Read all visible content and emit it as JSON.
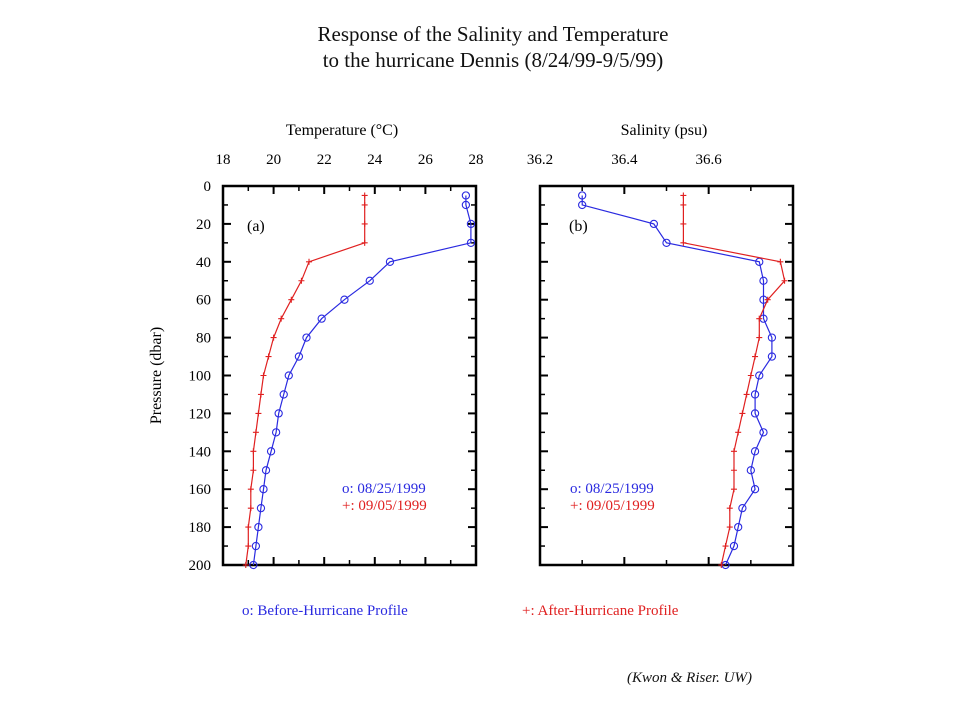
{
  "figure": {
    "title_line1": "Response of the Salinity and Temperature",
    "title_line2": "to the hurricane Dennis (8/24/99-9/5/99)",
    "legend_before": "o: Before-Hurricane Profile",
    "legend_after": "+: After-Hurricane Profile",
    "credit": "(Kwon & Riser. UW)",
    "colors": {
      "before": "#2a2ae0",
      "after": "#e02020",
      "axis": "#000000"
    }
  },
  "chart_data": [
    {
      "type": "line",
      "panel_label": "(a)",
      "xlabel": "Temperature (°C)",
      "ylabel": "Pressure (dbar)",
      "xlim": [
        18,
        28
      ],
      "ylim": [
        200,
        0
      ],
      "y_inverted": true,
      "xticks": [
        "18",
        "20",
        "22",
        "24",
        "26",
        "28"
      ],
      "yticks": [
        "0",
        "20",
        "40",
        "60",
        "80",
        "100",
        "120",
        "140",
        "160",
        "180",
        "200"
      ],
      "grid": false,
      "legend": {
        "placement": "lower-right",
        "entries": [
          "o: 08/25/1999",
          "+: 09/05/1999"
        ]
      },
      "series": [
        {
          "name": "08/25/1999",
          "marker": "o",
          "color": "#2a2ae0",
          "points": [
            [
              27.6,
              5
            ],
            [
              27.6,
              10
            ],
            [
              27.8,
              20
            ],
            [
              27.8,
              30
            ],
            [
              24.6,
              40
            ],
            [
              23.8,
              50
            ],
            [
              22.8,
              60
            ],
            [
              21.9,
              70
            ],
            [
              21.3,
              80
            ],
            [
              21.0,
              90
            ],
            [
              20.6,
              100
            ],
            [
              20.4,
              110
            ],
            [
              20.2,
              120
            ],
            [
              20.1,
              130
            ],
            [
              19.9,
              140
            ],
            [
              19.7,
              150
            ],
            [
              19.6,
              160
            ],
            [
              19.5,
              170
            ],
            [
              19.4,
              180
            ],
            [
              19.3,
              190
            ],
            [
              19.2,
              200
            ]
          ]
        },
        {
          "name": "09/05/1999",
          "marker": "+",
          "color": "#e02020",
          "points": [
            [
              23.6,
              5
            ],
            [
              23.6,
              10
            ],
            [
              23.6,
              20
            ],
            [
              23.6,
              30
            ],
            [
              21.4,
              40
            ],
            [
              21.1,
              50
            ],
            [
              20.7,
              60
            ],
            [
              20.3,
              70
            ],
            [
              20.0,
              80
            ],
            [
              19.8,
              90
            ],
            [
              19.6,
              100
            ],
            [
              19.5,
              110
            ],
            [
              19.4,
              120
            ],
            [
              19.3,
              130
            ],
            [
              19.2,
              140
            ],
            [
              19.2,
              150
            ],
            [
              19.1,
              160
            ],
            [
              19.1,
              170
            ],
            [
              19.0,
              180
            ],
            [
              19.0,
              190
            ],
            [
              18.9,
              200
            ]
          ]
        }
      ]
    },
    {
      "type": "line",
      "panel_label": "(b)",
      "xlabel": "Salinity (psu)",
      "xlim": [
        36.2,
        36.8
      ],
      "ylim": [
        200,
        0
      ],
      "y_inverted": true,
      "xticks": [
        "36.2",
        "36.4",
        "36.6"
      ],
      "grid": false,
      "legend": {
        "placement": "lower-left",
        "entries": [
          "o: 08/25/1999",
          "+: 09/05/1999"
        ]
      },
      "series": [
        {
          "name": "08/25/1999",
          "marker": "o",
          "color": "#2a2ae0",
          "points": [
            [
              36.3,
              5
            ],
            [
              36.3,
              10
            ],
            [
              36.47,
              20
            ],
            [
              36.5,
              30
            ],
            [
              36.72,
              40
            ],
            [
              36.73,
              50
            ],
            [
              36.73,
              60
            ],
            [
              36.73,
              70
            ],
            [
              36.75,
              80
            ],
            [
              36.75,
              90
            ],
            [
              36.72,
              100
            ],
            [
              36.71,
              110
            ],
            [
              36.71,
              120
            ],
            [
              36.73,
              130
            ],
            [
              36.71,
              140
            ],
            [
              36.7,
              150
            ],
            [
              36.71,
              160
            ],
            [
              36.68,
              170
            ],
            [
              36.67,
              180
            ],
            [
              36.66,
              190
            ],
            [
              36.64,
              200
            ]
          ]
        },
        {
          "name": "09/05/1999",
          "marker": "+",
          "color": "#e02020",
          "points": [
            [
              36.54,
              5
            ],
            [
              36.54,
              10
            ],
            [
              36.54,
              20
            ],
            [
              36.54,
              30
            ],
            [
              36.77,
              40
            ],
            [
              36.78,
              50
            ],
            [
              36.74,
              60
            ],
            [
              36.72,
              70
            ],
            [
              36.72,
              80
            ],
            [
              36.71,
              90
            ],
            [
              36.7,
              100
            ],
            [
              36.69,
              110
            ],
            [
              36.68,
              120
            ],
            [
              36.67,
              130
            ],
            [
              36.66,
              140
            ],
            [
              36.66,
              150
            ],
            [
              36.66,
              160
            ],
            [
              36.65,
              170
            ],
            [
              36.65,
              180
            ],
            [
              36.64,
              190
            ],
            [
              36.63,
              200
            ]
          ]
        }
      ]
    }
  ]
}
